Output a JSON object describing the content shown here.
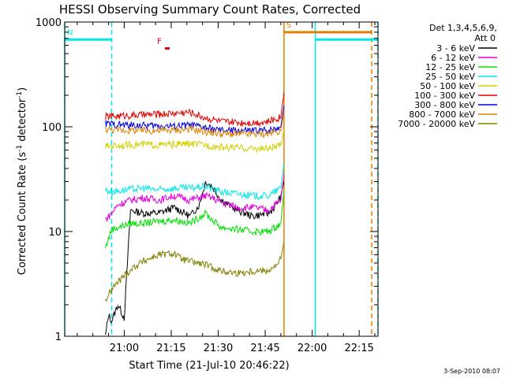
{
  "chart_data": {
    "type": "line",
    "title": "HESSI Observing Summary Count Rates, Corrected",
    "xlabel": "Start Time (21-Jul-10 20:46:22)",
    "ylabel": "Corrected Count Rate (s",
    "ylabel_sup1": "-1",
    "ylabel_mid": " detector",
    "ylabel_sup2": "-1",
    "ylabel_end": ")",
    "yscale": "log",
    "ylim": [
      1,
      1000
    ],
    "xlim_minutes": [
      -5,
      95
    ],
    "x_ticks": [
      {
        "label": "21:00",
        "min": 14
      },
      {
        "label": "21:15",
        "min": 29
      },
      {
        "label": "21:30",
        "min": 44
      },
      {
        "label": "21:45",
        "min": 59
      },
      {
        "label": "22:00",
        "min": 74
      },
      {
        "label": "22:15",
        "min": 89
      }
    ],
    "y_ticks": [
      {
        "label": "1000",
        "value": 1000
      },
      {
        "label": "100",
        "value": 100
      },
      {
        "label": "10",
        "value": 10
      },
      {
        "label": "1",
        "value": 1
      }
    ],
    "legend": {
      "header1": "Det 1,3,4,5,6,9,",
      "header2": "Att 0",
      "position": "right"
    },
    "series": [
      {
        "name": "3 - 6 keV",
        "color": "#000000",
        "x": [
          8,
          9,
          10,
          12,
          14,
          16,
          20,
          25,
          30,
          35,
          38,
          40,
          42,
          45,
          50,
          55,
          60,
          62,
          64,
          65
        ],
        "y": [
          1.0,
          1.6,
          1.4,
          2.0,
          1.5,
          16,
          15,
          15,
          17,
          14,
          18,
          30,
          27,
          20,
          16,
          14,
          15,
          17,
          22,
          30
        ]
      },
      {
        "name": "6 - 12 keV",
        "color": "#e000e0",
        "x": [
          8,
          10,
          12,
          14,
          16,
          20,
          25,
          30,
          35,
          40,
          42,
          45,
          50,
          55,
          60,
          64,
          65
        ],
        "y": [
          13,
          15,
          18,
          19,
          20,
          21,
          20,
          22,
          20,
          22,
          21,
          19,
          17,
          17,
          16,
          20,
          35
        ]
      },
      {
        "name": "12 - 25 keV",
        "color": "#00e000",
        "x": [
          8,
          10,
          12,
          14,
          16,
          20,
          25,
          30,
          35,
          40,
          42,
          45,
          50,
          55,
          60,
          64,
          65
        ],
        "y": [
          7,
          10.5,
          11,
          11.5,
          12,
          12,
          12.5,
          13,
          12,
          15,
          13,
          11,
          10.5,
          10,
          10,
          12,
          25
        ]
      },
      {
        "name": "25 - 50 keV",
        "color": "#00e8e8",
        "x": [
          8,
          10,
          14,
          20,
          25,
          30,
          35,
          40,
          45,
          50,
          55,
          60,
          64,
          65
        ],
        "y": [
          25,
          24,
          25,
          26,
          25,
          26,
          26,
          27,
          24,
          23,
          22,
          22,
          26,
          45
        ]
      },
      {
        "name": "50 - 100 keV",
        "color": "#d0d000",
        "x": [
          8,
          10,
          14,
          20,
          25,
          30,
          35,
          40,
          45,
          50,
          55,
          60,
          64,
          65
        ],
        "y": [
          65,
          66,
          67,
          68,
          67,
          68,
          69,
          67,
          64,
          63,
          62,
          62,
          66,
          95
        ]
      },
      {
        "name": "100 - 300 keV",
        "color": "#e00000",
        "x": [
          8,
          10,
          14,
          20,
          25,
          30,
          35,
          40,
          45,
          50,
          55,
          60,
          64,
          65
        ],
        "y": [
          125,
          126,
          128,
          130,
          132,
          135,
          138,
          122,
          112,
          110,
          110,
          112,
          125,
          210
        ]
      },
      {
        "name": "300 - 800 keV",
        "color": "#0000e0",
        "x": [
          8,
          10,
          14,
          20,
          25,
          30,
          35,
          40,
          45,
          50,
          55,
          60,
          64,
          65
        ],
        "y": [
          107,
          106,
          104,
          103,
          102,
          102,
          104,
          98,
          92,
          92,
          92,
          93,
          100,
          160
        ]
      },
      {
        "name": "800 - 7000 keV",
        "color": "#e08000",
        "x": [
          8,
          10,
          14,
          20,
          25,
          30,
          35,
          40,
          45,
          50,
          55,
          60,
          64,
          65
        ],
        "y": [
          95,
          94,
          93,
          92,
          92,
          93,
          95,
          90,
          86,
          85,
          85,
          86,
          92,
          140
        ]
      },
      {
        "name": "7000 - 20000 keV",
        "color": "#808000",
        "x": [
          8,
          10,
          12,
          14,
          16,
          18,
          20,
          25,
          30,
          32,
          35,
          40,
          45,
          50,
          55,
          60,
          62,
          64,
          65
        ],
        "y": [
          2.2,
          2.8,
          3.3,
          3.8,
          4.3,
          4.8,
          5.2,
          6.0,
          6.2,
          5.5,
          5.2,
          4.8,
          4.2,
          4.0,
          4.2,
          4.3,
          4.5,
          5.5,
          8
        ]
      }
    ],
    "intervals": [
      {
        "label": "N",
        "color": "#00e8e8",
        "start": -5,
        "end": 10,
        "value": 680
      },
      {
        "label": "",
        "color": "#00e8e8",
        "start": 75,
        "end": 95,
        "value": 680
      },
      {
        "label": "S",
        "color": "#e08000",
        "start": 65,
        "end": 93,
        "value": 800
      },
      {
        "label": "F",
        "color": "#e00000",
        "start": 27,
        "end": 28.5,
        "value": 560
      }
    ],
    "vlines": [
      {
        "color": "#00e8e8",
        "min": -5,
        "dashed": false
      },
      {
        "color": "#00e8e8",
        "min": 10,
        "dashed": true
      },
      {
        "color": "#e08000",
        "min": 65,
        "dashed": false
      },
      {
        "color": "#00e8e8",
        "min": 75,
        "dashed": false
      },
      {
        "color": "#e08000",
        "min": 93,
        "dashed": true
      },
      {
        "color": "#00e8e8",
        "min": 95,
        "dashed": true
      }
    ],
    "footer": "3-Sep-2010 08:07"
  }
}
